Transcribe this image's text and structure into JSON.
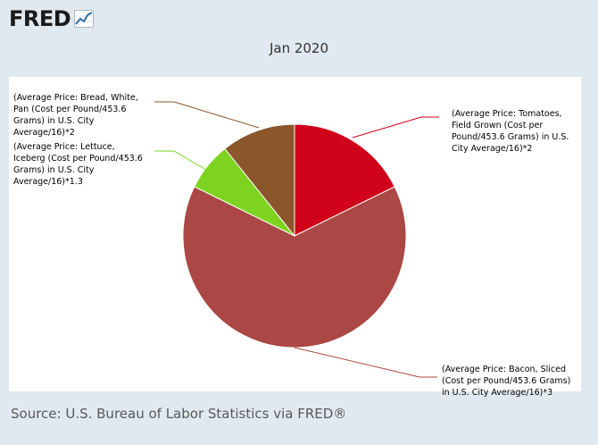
{
  "logo": {
    "text": "FRED",
    "icon": "chart-line-icon"
  },
  "source": "Source: U.S. Bureau of Labor Statistics via FRED®",
  "chart_data": {
    "type": "pie",
    "title": "Jan 2020",
    "slices": [
      {
        "label_lines": [
          "(Average Price: Tomatoes,",
          "Field Grown (Cost per",
          "Pound/453.6 Grams) in U.S.",
          "City Average/16)*2"
        ],
        "value": 0.1774,
        "color": "#d0021b"
      },
      {
        "label_lines": [
          "(Average Price: Bacon, Sliced",
          "(Cost per Pound/453.6 Grams)",
          "in U.S. City Average/16)*3"
        ],
        "value": 0.6452,
        "color": "#ab4744"
      },
      {
        "label_lines": [
          "(Average Price: Lettuce,",
          "Iceberg (Cost per Pound/453.6",
          "Grams) in U.S. City",
          "Average/16)*1.3"
        ],
        "value": 0.07,
        "color": "#7ed321"
      },
      {
        "label_lines": [
          "(Average Price: Bread, White,",
          "Pan (Cost per Pound/453.6",
          "Grams) in U.S. City",
          "Average/16)*2"
        ],
        "value": 0.1074,
        "color": "#8b572a"
      }
    ]
  }
}
